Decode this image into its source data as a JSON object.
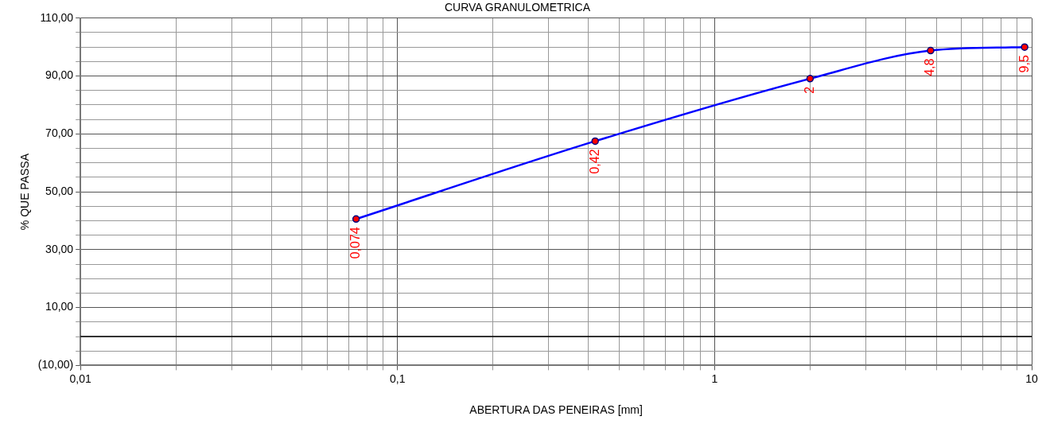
{
  "chart_data": {
    "type": "line",
    "title": "CURVA GRANULOMETRICA",
    "xlabel": "ABERTURA DAS PENEIRAS [mm]",
    "ylabel": "% QUE PASSA",
    "x": [
      0.074,
      0.42,
      2,
      4.8,
      9.5
    ],
    "series": [
      {
        "color": "#0000ff",
        "values": [
          40.6,
          67.5,
          89.1,
          98.8,
          100
        ]
      }
    ],
    "annotations": [
      {
        "text": "0,074",
        "x": 0.074,
        "y": 40.6
      },
      {
        "text": "0,42",
        "x": 0.42,
        "y": 67.5
      },
      {
        "text": "2",
        "x": 2,
        "y": 89.1
      },
      {
        "text": "4,8",
        "x": 4.8,
        "y": 98.8
      },
      {
        "text": "9,5",
        "x": 9.5,
        "y": 100
      }
    ],
    "log": "x",
    "xlim": [
      0.01,
      10
    ],
    "xticks": [
      {
        "value": 0.01,
        "label": "0,01"
      },
      {
        "value": 0.02,
        "label": null
      },
      {
        "value": 0.03,
        "label": null
      },
      {
        "value": 0.04,
        "label": null
      },
      {
        "value": 0.05,
        "label": null
      },
      {
        "value": 0.06,
        "label": null
      },
      {
        "value": 0.07,
        "label": null
      },
      {
        "value": 0.08,
        "label": null
      },
      {
        "value": 0.09,
        "label": null
      },
      {
        "value": 0.1,
        "label": "0,1"
      },
      {
        "value": 0.2,
        "label": null
      },
      {
        "value": 0.3,
        "label": null
      },
      {
        "value": 0.4,
        "label": null
      },
      {
        "value": 0.5,
        "label": null
      },
      {
        "value": 0.6,
        "label": null
      },
      {
        "value": 0.7,
        "label": null
      },
      {
        "value": 0.8,
        "label": null
      },
      {
        "value": 0.9,
        "label": null
      },
      {
        "value": 1,
        "label": "1"
      },
      {
        "value": 2,
        "label": null
      },
      {
        "value": 3,
        "label": null
      },
      {
        "value": 4,
        "label": null
      },
      {
        "value": 5,
        "label": null
      },
      {
        "value": 6,
        "label": null
      },
      {
        "value": 7,
        "label": null
      },
      {
        "value": 8,
        "label": null
      },
      {
        "value": 9,
        "label": null
      },
      {
        "value": 10,
        "label": "10"
      }
    ],
    "ylim": [
      -10,
      110
    ],
    "yticks": [
      {
        "value": -10,
        "label": "(10,00)"
      },
      {
        "value": -5,
        "label": null
      },
      {
        "value": 0,
        "label": null
      },
      {
        "value": 5,
        "label": null
      },
      {
        "value": 10,
        "label": "10,00"
      },
      {
        "value": 15,
        "label": null
      },
      {
        "value": 20,
        "label": null
      },
      {
        "value": 25,
        "label": null
      },
      {
        "value": 30,
        "label": "30,00"
      },
      {
        "value": 35,
        "label": null
      },
      {
        "value": 40,
        "label": null
      },
      {
        "value": 45,
        "label": null
      },
      {
        "value": 50,
        "label": "50,00"
      },
      {
        "value": 55,
        "label": null
      },
      {
        "value": 60,
        "label": null
      },
      {
        "value": 65,
        "label": null
      },
      {
        "value": 70,
        "label": "70,00"
      },
      {
        "value": 75,
        "label": null
      },
      {
        "value": 80,
        "label": null
      },
      {
        "value": 85,
        "label": null
      },
      {
        "value": 90,
        "label": "90,00"
      },
      {
        "value": 95,
        "label": null
      },
      {
        "value": 100,
        "label": null
      },
      {
        "value": 105,
        "label": null
      },
      {
        "value": 110,
        "label": "110,00"
      }
    ],
    "ref_lines": [
      {
        "axis": "y",
        "value": 0,
        "color": "#000000"
      }
    ],
    "grid": true,
    "legend": false,
    "marker": "circle",
    "line_style": "solid"
  }
}
